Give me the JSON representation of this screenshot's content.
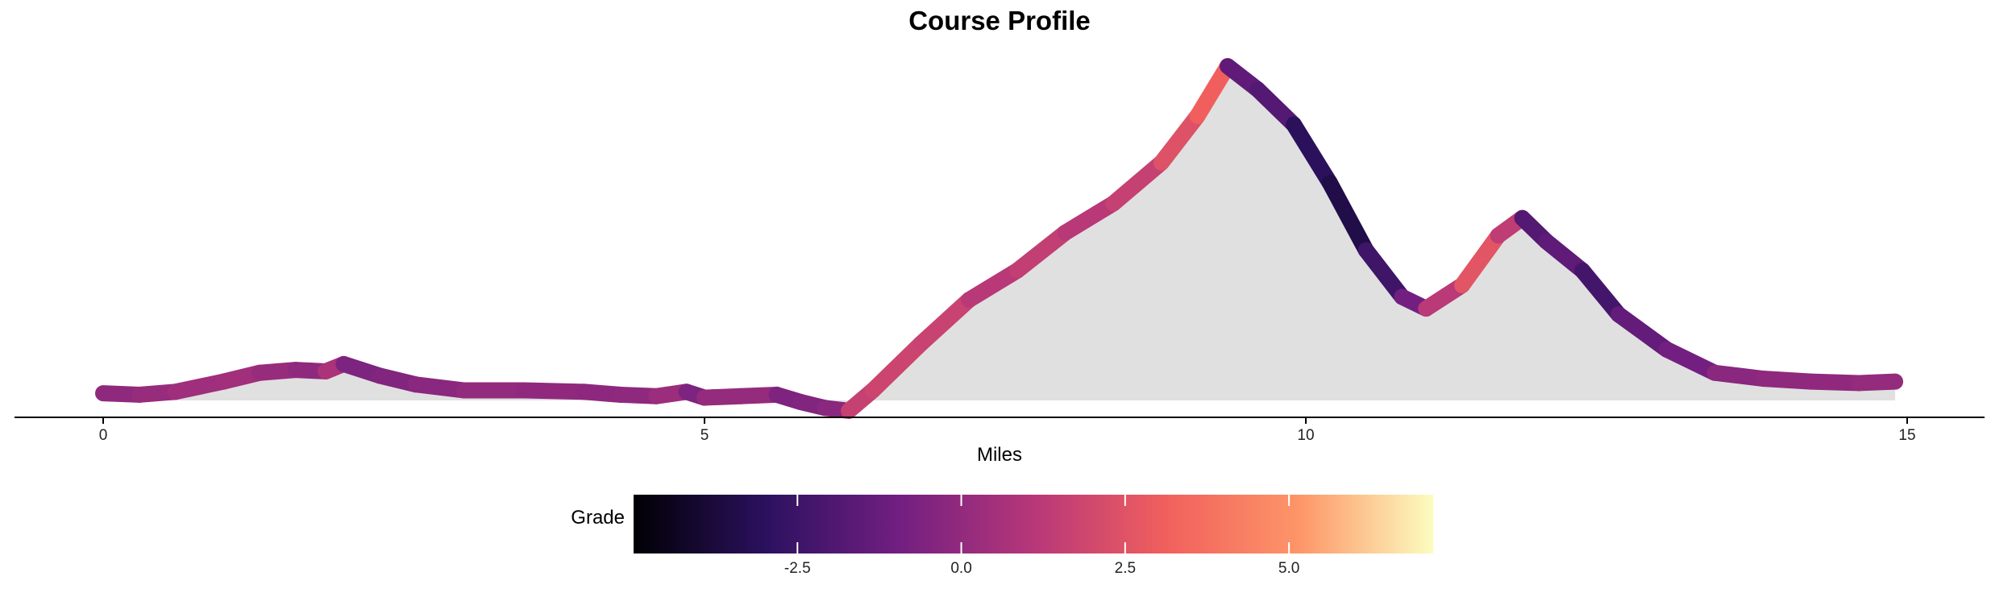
{
  "chart_data": {
    "type": "area",
    "title": "Course Profile",
    "xlabel": "Miles",
    "ylabel": "",
    "xlim": [
      -0.7,
      15.7
    ],
    "xticks": [
      0,
      5,
      10,
      15
    ],
    "xtick_labels": [
      "0",
      "5",
      "10",
      "15"
    ],
    "y_axis_visible": false,
    "area_fill_color": "#e0e0e0",
    "line_colored_by": "Grade",
    "points": [
      {
        "x": 0.0,
        "y": 3
      },
      {
        "x": 0.3,
        "y": 2.5
      },
      {
        "x": 0.6,
        "y": 3.5
      },
      {
        "x": 1.0,
        "y": 7
      },
      {
        "x": 1.3,
        "y": 10
      },
      {
        "x": 1.6,
        "y": 11
      },
      {
        "x": 1.85,
        "y": 10.5
      },
      {
        "x": 2.0,
        "y": 13
      },
      {
        "x": 2.3,
        "y": 9
      },
      {
        "x": 2.6,
        "y": 6
      },
      {
        "x": 3.0,
        "y": 4
      },
      {
        "x": 3.5,
        "y": 4
      },
      {
        "x": 4.0,
        "y": 3.5
      },
      {
        "x": 4.3,
        "y": 2.5
      },
      {
        "x": 4.6,
        "y": 2
      },
      {
        "x": 4.85,
        "y": 3.5
      },
      {
        "x": 5.0,
        "y": 1.5
      },
      {
        "x": 5.3,
        "y": 2
      },
      {
        "x": 5.6,
        "y": 2.5
      },
      {
        "x": 5.8,
        "y": 0
      },
      {
        "x": 6.0,
        "y": -2
      },
      {
        "x": 6.2,
        "y": -3
      },
      {
        "x": 6.4,
        "y": 4
      },
      {
        "x": 6.8,
        "y": 20
      },
      {
        "x": 7.2,
        "y": 35
      },
      {
        "x": 7.6,
        "y": 45
      },
      {
        "x": 8.0,
        "y": 58
      },
      {
        "x": 8.4,
        "y": 68
      },
      {
        "x": 8.8,
        "y": 82
      },
      {
        "x": 9.1,
        "y": 98
      },
      {
        "x": 9.35,
        "y": 115
      },
      {
        "x": 9.6,
        "y": 107
      },
      {
        "x": 9.9,
        "y": 95
      },
      {
        "x": 10.2,
        "y": 75
      },
      {
        "x": 10.5,
        "y": 52
      },
      {
        "x": 10.8,
        "y": 36
      },
      {
        "x": 11.0,
        "y": 32
      },
      {
        "x": 11.3,
        "y": 40
      },
      {
        "x": 11.6,
        "y": 57
      },
      {
        "x": 11.8,
        "y": 63
      },
      {
        "x": 12.0,
        "y": 55
      },
      {
        "x": 12.3,
        "y": 45
      },
      {
        "x": 12.6,
        "y": 30
      },
      {
        "x": 13.0,
        "y": 18
      },
      {
        "x": 13.4,
        "y": 10
      },
      {
        "x": 13.8,
        "y": 8
      },
      {
        "x": 14.2,
        "y": 7
      },
      {
        "x": 14.6,
        "y": 6.5
      },
      {
        "x": 14.9,
        "y": 7
      }
    ],
    "legend": {
      "title": "Grade",
      "position": "bottom",
      "type": "colorbar",
      "palette": "magma",
      "range": [
        -5,
        7.2
      ],
      "ticks": [
        -2.5,
        0.0,
        2.5,
        5.0
      ],
      "tick_labels": [
        "-2.5",
        "0.0",
        "2.5",
        "5.0"
      ],
      "colors": [
        "#000004",
        "#2c115f",
        "#721f81",
        "#b73779",
        "#f1605d",
        "#fd9668",
        "#fcfdbf"
      ]
    },
    "grid": false
  }
}
